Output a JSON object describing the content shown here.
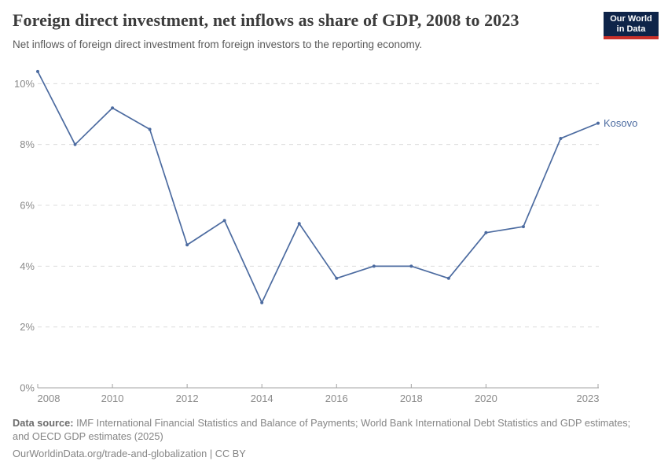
{
  "header": {
    "title": "Foreign direct investment, net inflows as share of GDP, 2008 to 2023",
    "subtitle": "Net inflows of foreign direct investment from foreign investors to the reporting economy.",
    "logo": {
      "line1": "Our World",
      "line2": "in Data",
      "bg_color": "#0e2449",
      "accent_color": "#c9302a"
    }
  },
  "chart_data": {
    "type": "line",
    "title": "Foreign direct investment, net inflows as share of GDP, 2008 to 2023",
    "x": [
      2008,
      2009,
      2010,
      2011,
      2012,
      2013,
      2014,
      2015,
      2016,
      2017,
      2018,
      2019,
      2020,
      2021,
      2022,
      2023
    ],
    "series": [
      {
        "name": "Kosovo",
        "color": "#4c6ba0",
        "values": [
          10.4,
          8.0,
          9.2,
          8.5,
          4.7,
          5.5,
          2.8,
          5.4,
          3.6,
          4.0,
          4.0,
          3.6,
          5.1,
          5.3,
          8.2,
          8.7
        ]
      }
    ],
    "end_label": "Kosovo",
    "xlabel": "",
    "ylabel": "",
    "y_unit": "%",
    "ylim": [
      0,
      10.6
    ],
    "y_ticks": [
      0,
      2,
      4,
      6,
      8,
      10
    ],
    "x_tick_years": [
      2008,
      2010,
      2012,
      2014,
      2016,
      2018,
      2020,
      2023
    ],
    "grid": "horizontal-dashed",
    "legend_position": "end-of-line",
    "colors": {
      "gridline": "#dcdcdc",
      "axis": "#a3a3a3",
      "tick_label": "#8a8a8a"
    }
  },
  "footer": {
    "source_label": "Data source:",
    "source_line1": "IMF International Financial Statistics and Balance of Payments; World Bank International Debt Statistics and GDP estimates;",
    "source_line2": "and OECD GDP estimates (2025)",
    "citation": "OurWorldinData.org/trade-and-globalization | CC BY"
  }
}
